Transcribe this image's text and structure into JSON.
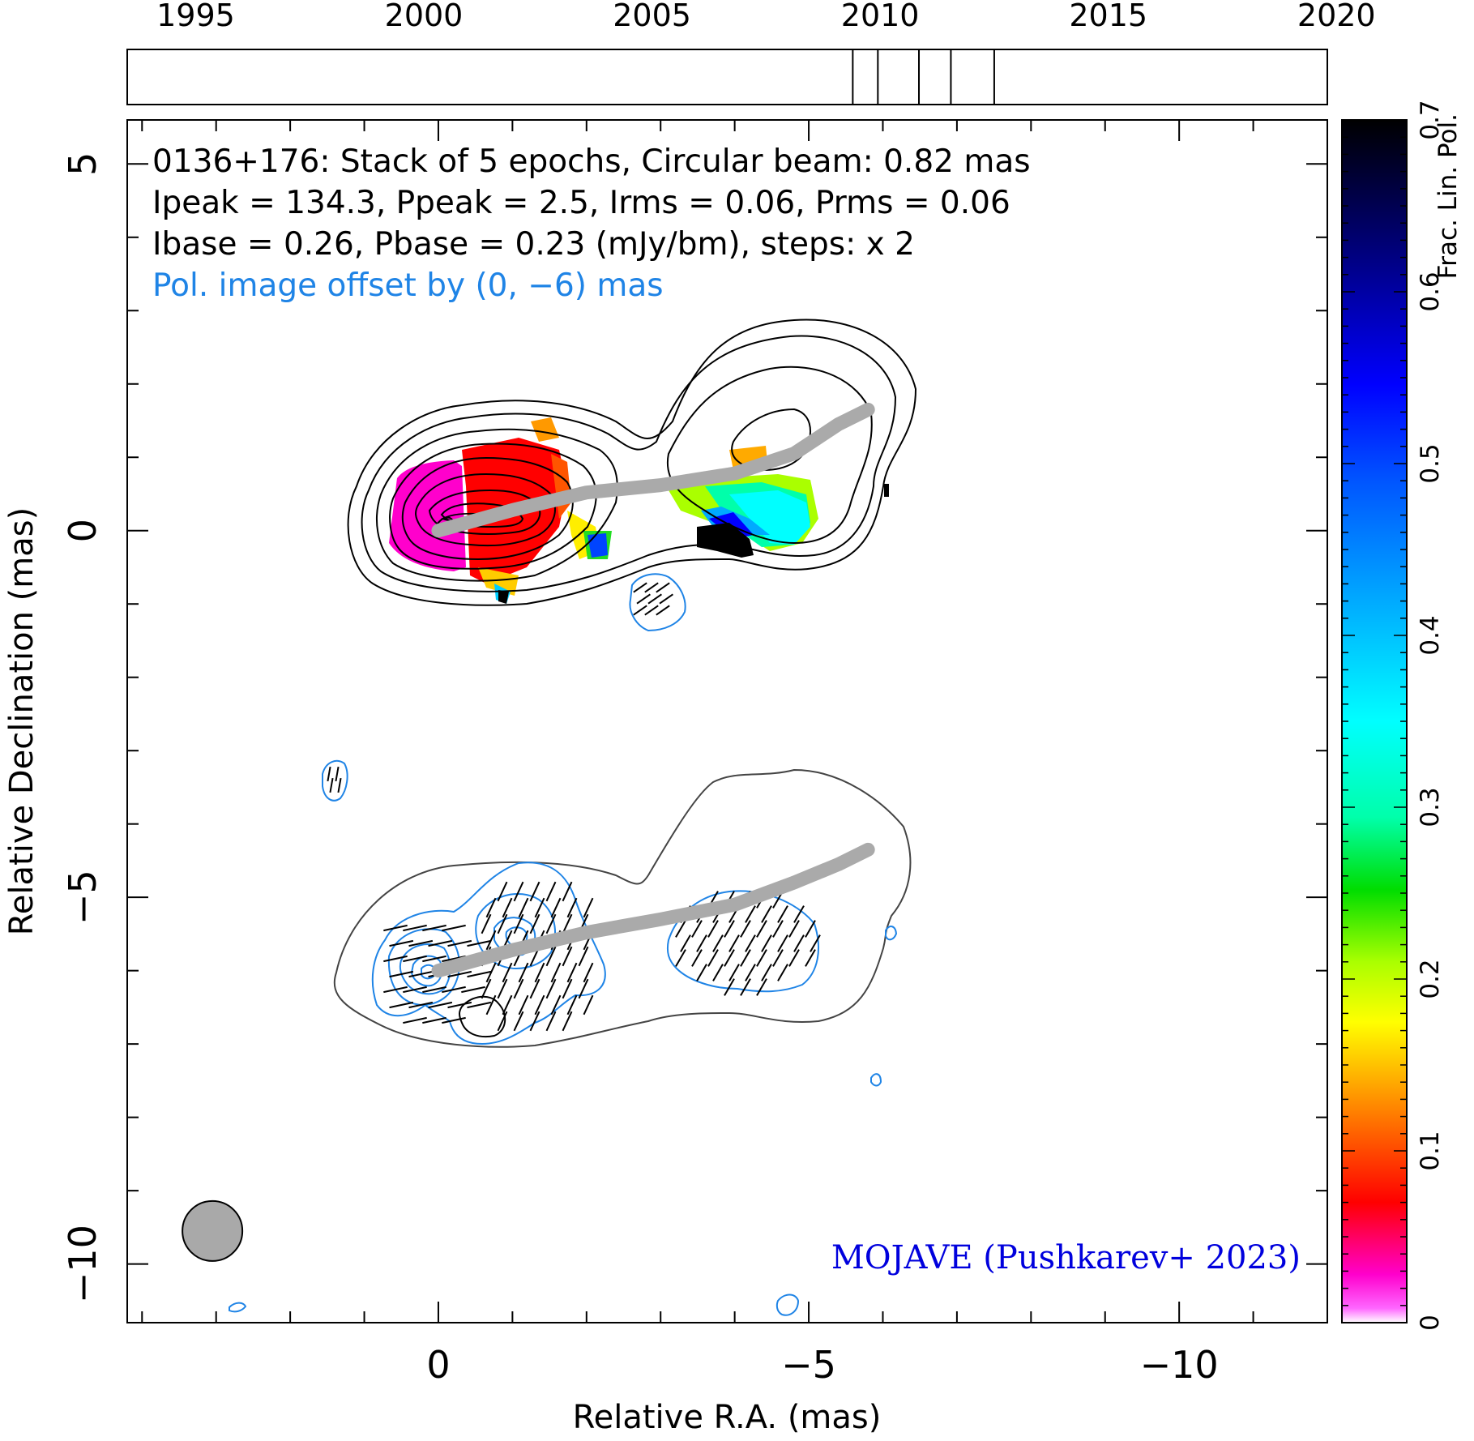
{
  "chart_data": {
    "type": "heatmap",
    "source_name": "0136+176",
    "annotations": {
      "line1": "0136+176: Stack of 5 epochs, Circular beam: 0.82 mas",
      "line2": "Ipeak = 134.3, Ppeak = 2.5, Irms = 0.06, Prms = 0.06",
      "line3": "Ibase = 0.26, Pbase = 0.23 (mJy/bm), steps: x 2",
      "line4": "Pol. image offset by (0, −6) mas",
      "credit": "MOJAVE (Pushkarev+ 2023)"
    },
    "xlabel": "Relative R.A. (mas)",
    "ylabel": "Relative Declination (mas)",
    "colorbar_label": "Frac. Lin. Pol.",
    "xlim": [
      4.2,
      -12
    ],
    "ylim": [
      -10.8,
      5.6
    ],
    "x_tick_labels": [
      "0",
      "−5",
      "−10"
    ],
    "x_tick_values": [
      0,
      -5,
      -10
    ],
    "y_tick_labels": [
      "5",
      "0",
      "−5",
      "−10"
    ],
    "y_tick_values": [
      5,
      0,
      -5,
      -10
    ],
    "colorbar": {
      "range": [
        0,
        0.7
      ],
      "tick_labels": [
        "0",
        "0.1",
        "0.2",
        "0.3",
        "0.4",
        "0.5",
        "0.6",
        "0.7"
      ],
      "tick_values": [
        0,
        0.1,
        0.2,
        0.3,
        0.4,
        0.5,
        0.6,
        0.7
      ]
    },
    "timeline": {
      "range": [
        1993.5,
        2019.8
      ],
      "year_labels": [
        "1995",
        "2000",
        "2005",
        "2010",
        "2015",
        "2020"
      ],
      "year_values": [
        1995,
        2000,
        2005,
        2010,
        2015,
        2020
      ],
      "epochs": [
        2009.4,
        2009.95,
        2010.85,
        2011.55,
        2012.5
      ]
    },
    "beam_diameter_mas": 0.82,
    "beam_center": [
      3.05,
      -9.55
    ],
    "ridge_line_stokes_i": [
      [
        0,
        0
      ],
      [
        -1,
        0.28
      ],
      [
        -2,
        0.52
      ],
      [
        -3,
        0.62
      ],
      [
        -4,
        0.78
      ],
      [
        -4.8,
        1.05
      ],
      [
        -5.4,
        1.45
      ],
      [
        -5.8,
        1.65
      ]
    ],
    "ridge_line_polarization": [
      [
        0,
        -6
      ],
      [
        -1,
        -5.72
      ],
      [
        -2,
        -5.48
      ],
      [
        -3,
        -5.3
      ],
      [
        -4,
        -5.1
      ],
      [
        -4.8,
        -4.8
      ],
      [
        -5.4,
        -4.55
      ],
      [
        -5.8,
        -4.35
      ]
    ]
  }
}
